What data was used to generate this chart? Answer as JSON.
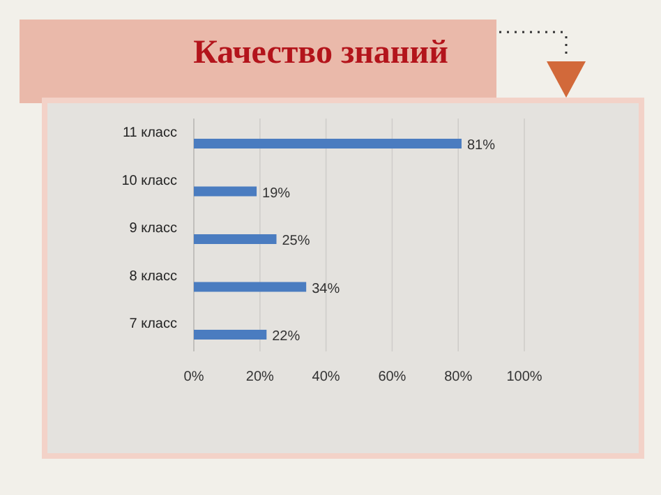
{
  "chart_data": {
    "type": "bar",
    "orientation": "horizontal",
    "title": "Качество знаний",
    "categories": [
      "11 класс",
      "10 класс",
      "9 класс",
      "8 класс",
      "7 класс"
    ],
    "values": [
      81,
      19,
      25,
      34,
      22
    ],
    "color": "#4a7cc0",
    "value_labels": [
      "81%",
      "19%",
      "25%",
      "34%",
      "22%"
    ],
    "xlim": [
      0,
      100
    ],
    "xticks": [
      {
        "value": 0,
        "label": "0%"
      },
      {
        "value": 20,
        "label": "20%"
      },
      {
        "value": 40,
        "label": "40%"
      },
      {
        "value": 60,
        "label": "60%"
      },
      {
        "value": 80,
        "label": "80%"
      },
      {
        "value": 100,
        "label": "100%"
      }
    ],
    "grid": "x"
  }
}
